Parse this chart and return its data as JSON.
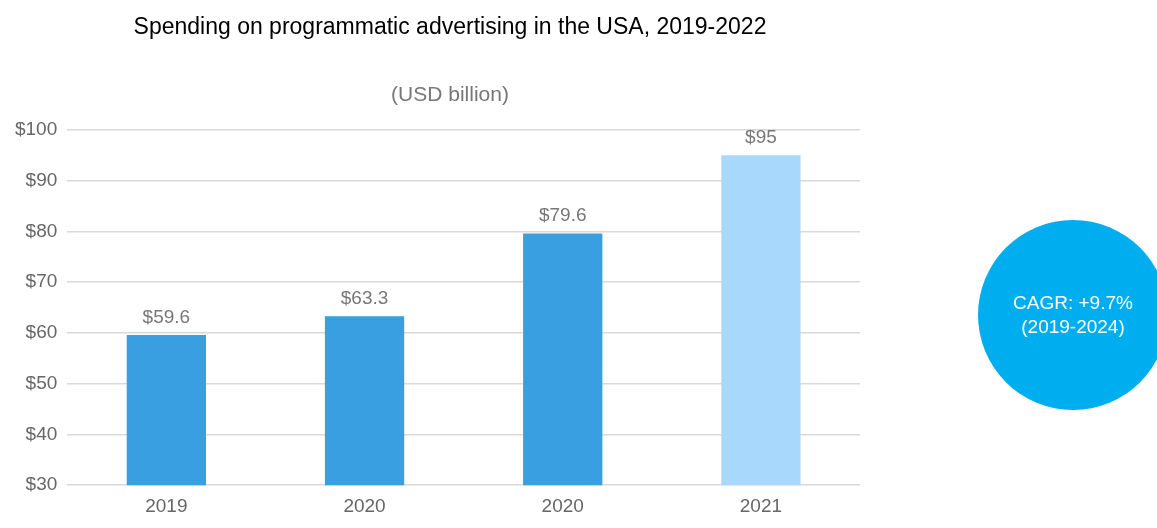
{
  "chart_data": {
    "type": "bar",
    "title": "Spending on programmatic advertising in the USA, 2019-2022",
    "subtitle": "(USD billion)",
    "categories": [
      "2019",
      "2020",
      "2020",
      "2021"
    ],
    "values": [
      59.6,
      63.3,
      79.6,
      95
    ],
    "colors": [
      "#3a9fe0",
      "#3a9fe0",
      "#3a9fe0",
      "#a8d8fc"
    ],
    "value_labels": [
      "$59.6",
      "$63.3",
      "$79.6",
      "$95"
    ],
    "ylim": [
      30,
      100
    ],
    "yticks": [
      {
        "value": 30,
        "label": "$30"
      },
      {
        "value": 40,
        "label": "$40"
      },
      {
        "value": 50,
        "label": "$50"
      },
      {
        "value": 60,
        "label": "$60"
      },
      {
        "value": 70,
        "label": "$70"
      },
      {
        "value": 80,
        "label": "$80"
      },
      {
        "value": 90,
        "label": "$90"
      },
      {
        "value": 100,
        "label": "$100"
      }
    ],
    "grid": "y",
    "legend": false,
    "annotations": [
      "CAGR: +9.7% (2019-2024)"
    ]
  }
}
